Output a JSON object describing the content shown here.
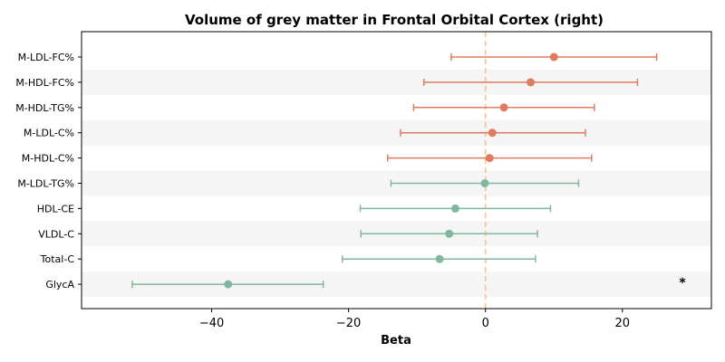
{
  "chart_data": {
    "type": "forest",
    "title": "Volume of grey matter in Frontal Orbital Cortex (right)",
    "xlabel": "Beta",
    "ylabel": "",
    "xlim": [
      -59,
      33
    ],
    "xticks": [
      -40,
      -20,
      0,
      20
    ],
    "xtick_labels": [
      "−40",
      "−20",
      "0",
      "20"
    ],
    "reference_line": 0,
    "row_banding": true,
    "colors": {
      "positive": "#e07b5f",
      "negative": "#7fb89c",
      "reference": "#f5c48a",
      "band": "#f5f5f5"
    },
    "rows": [
      {
        "label": "M-LDL-FC%",
        "beta": 10.0,
        "lower": -5.0,
        "upper": 25.0,
        "significant": false
      },
      {
        "label": "M-HDL-FC%",
        "beta": 6.6,
        "lower": -9.0,
        "upper": 22.2,
        "significant": false
      },
      {
        "label": "M-HDL-TG%",
        "beta": 2.7,
        "lower": -10.5,
        "upper": 15.9,
        "significant": false
      },
      {
        "label": "M-LDL-C%",
        "beta": 1.0,
        "lower": -12.4,
        "upper": 14.6,
        "significant": false
      },
      {
        "label": "M-HDL-C%",
        "beta": 0.6,
        "lower": -14.3,
        "upper": 15.5,
        "significant": false
      },
      {
        "label": "M-LDL-TG%",
        "beta": -0.1,
        "lower": -13.8,
        "upper": 13.6,
        "significant": false
      },
      {
        "label": "HDL-CE",
        "beta": -4.4,
        "lower": -18.3,
        "upper": 9.5,
        "significant": false
      },
      {
        "label": "VLDL-C",
        "beta": -5.3,
        "lower": -18.2,
        "upper": 7.6,
        "significant": false
      },
      {
        "label": "Total-C",
        "beta": -6.7,
        "lower": -20.9,
        "upper": 7.3,
        "significant": false
      },
      {
        "label": "GlycA",
        "beta": -37.6,
        "lower": -51.6,
        "upper": -23.7,
        "significant": true
      }
    ],
    "significance_marker": "*"
  }
}
